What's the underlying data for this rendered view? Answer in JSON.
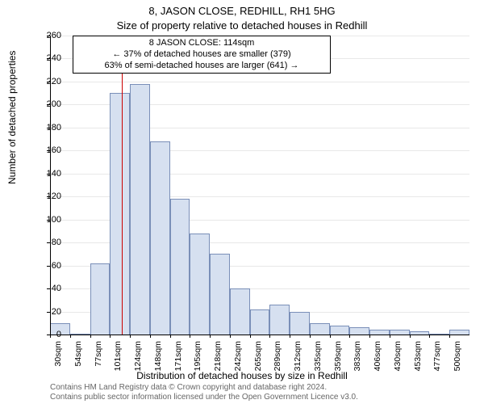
{
  "titles": {
    "line1": "8, JASON CLOSE, REDHILL, RH1 5HG",
    "line2": "Size of property relative to detached houses in Redhill"
  },
  "annotation": {
    "line1": "8 JASON CLOSE: 114sqm",
    "line2": "← 37% of detached houses are smaller (379)",
    "line3": "63% of semi-detached houses are larger (641) →"
  },
  "axes": {
    "ylabel": "Number of detached properties",
    "xlabel": "Distribution of detached houses by size in Redhill",
    "ymax": 260,
    "ytick_step": 20,
    "ylim": [
      0,
      260
    ],
    "grid_color": "#e8e8e8",
    "axis_color": "#000000",
    "label_fontsize": 12,
    "tick_fontsize": 11
  },
  "reference_line": {
    "x_value": 114,
    "color": "#cc0000"
  },
  "chart": {
    "type": "histogram",
    "bar_fill": "#d6e0f0",
    "bar_stroke": "#7a8fb8",
    "background_color": "#ffffff",
    "categories": [
      "30sqm",
      "54sqm",
      "77sqm",
      "101sqm",
      "124sqm",
      "148sqm",
      "171sqm",
      "195sqm",
      "218sqm",
      "242sqm",
      "265sqm",
      "289sqm",
      "312sqm",
      "335sqm",
      "359sqm",
      "383sqm",
      "406sqm",
      "430sqm",
      "453sqm",
      "477sqm",
      "500sqm"
    ],
    "values": [
      10,
      0,
      62,
      210,
      218,
      168,
      118,
      88,
      70,
      40,
      22,
      26,
      20,
      10,
      8,
      6,
      4,
      4,
      3,
      0,
      4
    ],
    "x_start": 30,
    "x_step": 23.5
  },
  "credits": {
    "line1": "Contains HM Land Registry data © Crown copyright and database right 2024.",
    "line2": "Contains public sector information licensed under the Open Government Licence v3.0."
  }
}
